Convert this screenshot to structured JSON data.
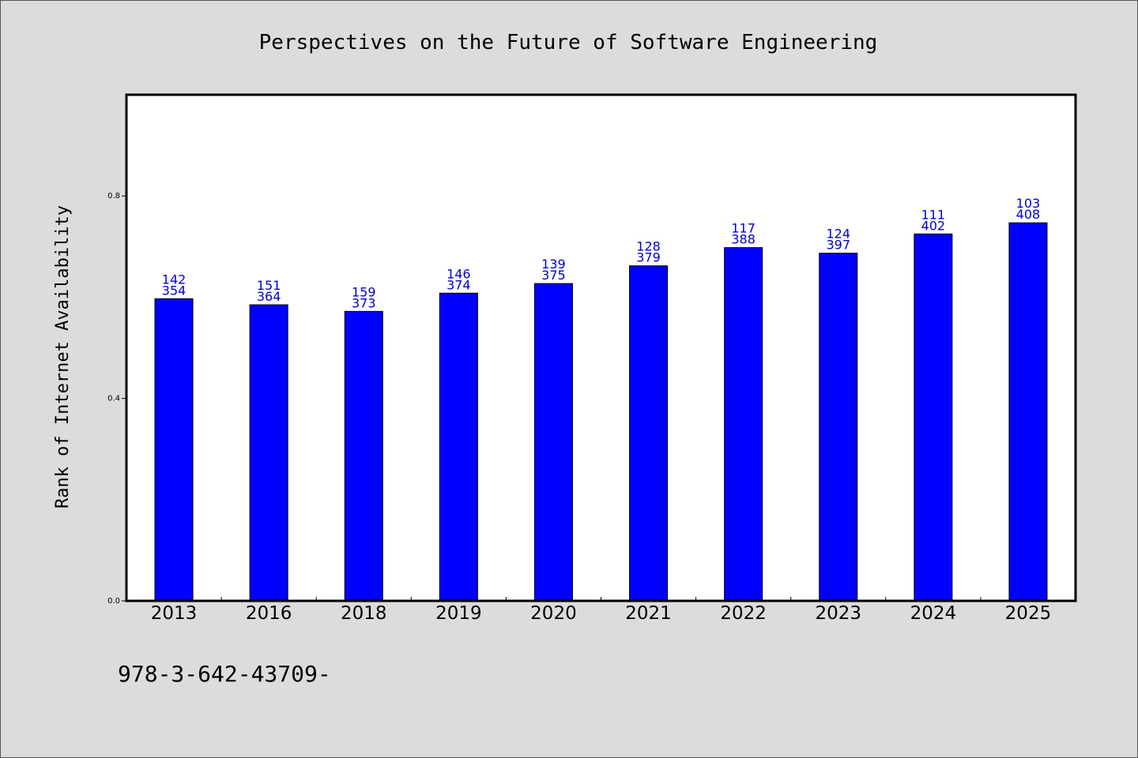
{
  "chart_data": {
    "type": "bar",
    "title": "Perspectives on the Future of Software Engineering",
    "xlabel": "",
    "ylabel": "Rank of Internet Availability",
    "categories": [
      "2013",
      "2016",
      "2018",
      "2019",
      "2020",
      "2021",
      "2022",
      "2023",
      "2024",
      "2025"
    ],
    "values": [
      0.597,
      0.585,
      0.572,
      0.608,
      0.627,
      0.662,
      0.698,
      0.687,
      0.725,
      0.747
    ],
    "data_labels": [
      [
        "142",
        "354"
      ],
      [
        "151",
        "364"
      ],
      [
        "159",
        "373"
      ],
      [
        "146",
        "374"
      ],
      [
        "139",
        "375"
      ],
      [
        "128",
        "379"
      ],
      [
        "117",
        "388"
      ],
      [
        "124",
        "397"
      ],
      [
        "111",
        "402"
      ],
      [
        "103",
        "408"
      ]
    ],
    "ylim": [
      0.0,
      1.0
    ],
    "yticks": [
      0.0,
      0.4,
      0.8
    ],
    "ytick_labels": [
      "0.0",
      "0.4",
      "0.8"
    ],
    "grid": false,
    "legend": "none",
    "colors": {
      "bar": "#0000ff",
      "bar_edge": "#000000",
      "data_label": "#0000cc",
      "background": "#dcdcdc",
      "plot_background": "#ffffff"
    }
  },
  "footnote": "978-3-642-43709-"
}
